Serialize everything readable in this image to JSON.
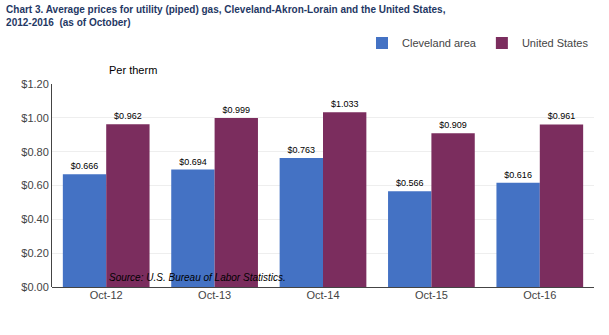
{
  "chart_data": {
    "type": "bar",
    "title": "Chart 3. Average prices for utility (piped) gas, Cleveland-Akron-Lorain and the United States,",
    "subtitle": "2012-2016  (as of October)",
    "ylabel": "Per therm",
    "source": "Source: U.S. Bureau of Labor Statistics.",
    "categories": [
      "Oct-12",
      "Oct-13",
      "Oct-14",
      "Oct-15",
      "Oct-16"
    ],
    "series": [
      {
        "name": "Cleveland area",
        "color": "#4472C4",
        "values": [
          0.666,
          0.694,
          0.763,
          0.566,
          0.616
        ],
        "value_labels": [
          "$0.666",
          "$0.694",
          "$0.763",
          "$0.566",
          "$0.616"
        ]
      },
      {
        "name": "United States",
        "color": "#7B2D5E",
        "values": [
          0.962,
          0.999,
          1.033,
          0.909,
          0.961
        ],
        "value_labels": [
          "$0.962",
          "$0.999",
          "$1.033",
          "$0.909",
          "$0.961"
        ]
      }
    ],
    "ylim": [
      0,
      1.2
    ],
    "yticks": [
      {
        "value": 0.0,
        "label": "$0.00"
      },
      {
        "value": 0.2,
        "label": "$0.20"
      },
      {
        "value": 0.4,
        "label": "$0.40"
      },
      {
        "value": 0.6,
        "label": "$0.60"
      },
      {
        "value": 0.8,
        "label": "$0.80"
      },
      {
        "value": 1.0,
        "label": "$1.00"
      },
      {
        "value": 1.2,
        "label": "$1.20"
      }
    ],
    "grid": true,
    "legend": "upper right",
    "data_labels": true
  }
}
